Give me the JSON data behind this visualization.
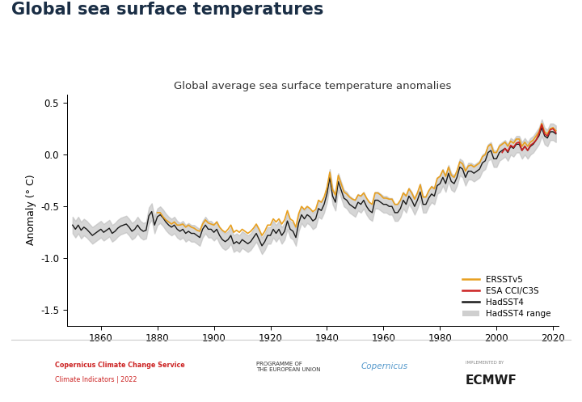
{
  "title_main": "Global sea surface temperatures",
  "title_chart": "Global average sea surface temperature anomalies",
  "ylabel": "Anomaly (° C)",
  "xlim": [
    1848,
    2022
  ],
  "ylim": [
    -1.65,
    0.58
  ],
  "yticks": [
    0.5,
    0.0,
    -0.5,
    -1.0,
    -1.5
  ],
  "xticks": [
    1860,
    1880,
    1900,
    1920,
    1940,
    1960,
    1980,
    2000,
    2020
  ],
  "had_color": "#1a1a1a",
  "ersst_color": "#E8A020",
  "esa_color": "#CC2222",
  "shade_color": "#BBBBBB",
  "title_color": "#1a2e45",
  "legend_labels": [
    "ERSSTv5",
    "ESA CCI/C3S",
    "HadSST4",
    "HadSST4 range"
  ],
  "had_lw": 1.0,
  "ersst_lw": 1.2,
  "esa_lw": 1.2,
  "years": [
    1850,
    1851,
    1852,
    1853,
    1854,
    1855,
    1856,
    1857,
    1858,
    1859,
    1860,
    1861,
    1862,
    1863,
    1864,
    1865,
    1866,
    1867,
    1868,
    1869,
    1870,
    1871,
    1872,
    1873,
    1874,
    1875,
    1876,
    1877,
    1878,
    1879,
    1880,
    1881,
    1882,
    1883,
    1884,
    1885,
    1886,
    1887,
    1888,
    1889,
    1890,
    1891,
    1892,
    1893,
    1894,
    1895,
    1896,
    1897,
    1898,
    1899,
    1900,
    1901,
    1902,
    1903,
    1904,
    1905,
    1906,
    1907,
    1908,
    1909,
    1910,
    1911,
    1912,
    1913,
    1914,
    1915,
    1916,
    1917,
    1918,
    1919,
    1920,
    1921,
    1922,
    1923,
    1924,
    1925,
    1926,
    1927,
    1928,
    1929,
    1930,
    1931,
    1932,
    1933,
    1934,
    1935,
    1936,
    1937,
    1938,
    1939,
    1940,
    1941,
    1942,
    1943,
    1944,
    1945,
    1946,
    1947,
    1948,
    1949,
    1950,
    1951,
    1952,
    1953,
    1954,
    1955,
    1956,
    1957,
    1958,
    1959,
    1960,
    1961,
    1962,
    1963,
    1964,
    1965,
    1966,
    1967,
    1968,
    1969,
    1970,
    1971,
    1972,
    1973,
    1974,
    1975,
    1976,
    1977,
    1978,
    1979,
    1980,
    1981,
    1982,
    1983,
    1984,
    1985,
    1986,
    1987,
    1988,
    1989,
    1990,
    1991,
    1992,
    1993,
    1994,
    1995,
    1996,
    1997,
    1998,
    1999,
    2000,
    2001,
    2002,
    2003,
    2004,
    2005,
    2006,
    2007,
    2008,
    2009,
    2010,
    2011,
    2012,
    2013,
    2014,
    2015,
    2016,
    2017,
    2018,
    2019,
    2020,
    2021
  ],
  "hadsst4": [
    -0.68,
    -0.72,
    -0.68,
    -0.73,
    -0.7,
    -0.72,
    -0.75,
    -0.78,
    -0.76,
    -0.74,
    -0.72,
    -0.75,
    -0.73,
    -0.71,
    -0.76,
    -0.74,
    -0.71,
    -0.69,
    -0.68,
    -0.67,
    -0.7,
    -0.74,
    -0.72,
    -0.68,
    -0.72,
    -0.74,
    -0.73,
    -0.59,
    -0.55,
    -0.68,
    -0.6,
    -0.58,
    -0.61,
    -0.65,
    -0.68,
    -0.7,
    -0.68,
    -0.72,
    -0.74,
    -0.72,
    -0.76,
    -0.74,
    -0.76,
    -0.76,
    -0.78,
    -0.8,
    -0.72,
    -0.68,
    -0.72,
    -0.72,
    -0.75,
    -0.72,
    -0.78,
    -0.82,
    -0.84,
    -0.82,
    -0.78,
    -0.86,
    -0.84,
    -0.86,
    -0.82,
    -0.84,
    -0.86,
    -0.84,
    -0.8,
    -0.76,
    -0.82,
    -0.88,
    -0.84,
    -0.78,
    -0.78,
    -0.72,
    -0.76,
    -0.72,
    -0.78,
    -0.74,
    -0.64,
    -0.72,
    -0.74,
    -0.8,
    -0.66,
    -0.58,
    -0.62,
    -0.58,
    -0.6,
    -0.64,
    -0.62,
    -0.52,
    -0.54,
    -0.48,
    -0.38,
    -0.22,
    -0.4,
    -0.46,
    -0.26,
    -0.34,
    -0.42,
    -0.44,
    -0.48,
    -0.5,
    -0.52,
    -0.46,
    -0.48,
    -0.44,
    -0.5,
    -0.54,
    -0.56,
    -0.44,
    -0.44,
    -0.46,
    -0.48,
    -0.48,
    -0.5,
    -0.5,
    -0.56,
    -0.56,
    -0.52,
    -0.44,
    -0.48,
    -0.4,
    -0.44,
    -0.5,
    -0.44,
    -0.36,
    -0.48,
    -0.48,
    -0.42,
    -0.38,
    -0.4,
    -0.3,
    -0.28,
    -0.22,
    -0.28,
    -0.18,
    -0.26,
    -0.28,
    -0.22,
    -0.12,
    -0.14,
    -0.22,
    -0.16,
    -0.16,
    -0.18,
    -0.16,
    -0.14,
    -0.08,
    -0.06,
    0.02,
    0.04,
    -0.04,
    -0.04,
    0.02,
    0.04,
    0.06,
    0.02,
    0.08,
    0.06,
    0.1,
    0.1,
    0.04,
    0.08,
    0.04,
    0.08,
    0.1,
    0.14,
    0.18,
    0.26,
    0.18,
    0.16,
    0.22,
    0.22,
    0.2
  ],
  "ersst": [
    null,
    null,
    null,
    null,
    null,
    null,
    null,
    null,
    null,
    null,
    null,
    null,
    null,
    null,
    null,
    null,
    null,
    null,
    null,
    null,
    null,
    null,
    null,
    null,
    null,
    null,
    null,
    null,
    null,
    null,
    -0.56,
    -0.56,
    -0.6,
    -0.63,
    -0.65,
    -0.67,
    -0.65,
    -0.68,
    -0.68,
    -0.67,
    -0.7,
    -0.68,
    -0.7,
    -0.71,
    -0.73,
    -0.74,
    -0.67,
    -0.63,
    -0.66,
    -0.67,
    -0.68,
    -0.65,
    -0.7,
    -0.73,
    -0.75,
    -0.72,
    -0.68,
    -0.75,
    -0.73,
    -0.75,
    -0.72,
    -0.74,
    -0.76,
    -0.74,
    -0.71,
    -0.67,
    -0.72,
    -0.78,
    -0.74,
    -0.68,
    -0.68,
    -0.62,
    -0.65,
    -0.62,
    -0.67,
    -0.63,
    -0.54,
    -0.62,
    -0.64,
    -0.7,
    -0.57,
    -0.5,
    -0.53,
    -0.5,
    -0.52,
    -0.55,
    -0.53,
    -0.44,
    -0.46,
    -0.41,
    -0.32,
    -0.17,
    -0.34,
    -0.39,
    -0.2,
    -0.28,
    -0.36,
    -0.38,
    -0.41,
    -0.43,
    -0.44,
    -0.39,
    -0.4,
    -0.37,
    -0.42,
    -0.46,
    -0.48,
    -0.37,
    -0.37,
    -0.39,
    -0.42,
    -0.42,
    -0.43,
    -0.43,
    -0.48,
    -0.48,
    -0.44,
    -0.37,
    -0.4,
    -0.33,
    -0.37,
    -0.43,
    -0.37,
    -0.29,
    -0.41,
    -0.41,
    -0.35,
    -0.31,
    -0.33,
    -0.23,
    -0.21,
    -0.15,
    -0.21,
    -0.12,
    -0.2,
    -0.22,
    -0.16,
    -0.07,
    -0.09,
    -0.16,
    -0.11,
    -0.1,
    -0.12,
    -0.1,
    -0.08,
    -0.02,
    0.0,
    0.08,
    0.1,
    0.02,
    0.02,
    0.08,
    0.1,
    0.12,
    0.08,
    0.13,
    0.11,
    0.15,
    0.15,
    0.08,
    0.12,
    0.08,
    0.12,
    0.14,
    0.18,
    0.22,
    0.3,
    0.22,
    0.2,
    0.25,
    0.26,
    0.23
  ],
  "esa": [
    null,
    null,
    null,
    null,
    null,
    null,
    null,
    null,
    null,
    null,
    null,
    null,
    null,
    null,
    null,
    null,
    null,
    null,
    null,
    null,
    null,
    null,
    null,
    null,
    null,
    null,
    null,
    null,
    null,
    null,
    null,
    null,
    null,
    null,
    null,
    null,
    null,
    null,
    null,
    null,
    null,
    null,
    null,
    null,
    null,
    null,
    null,
    null,
    null,
    null,
    null,
    null,
    null,
    null,
    null,
    null,
    null,
    null,
    null,
    null,
    null,
    null,
    null,
    null,
    null,
    null,
    null,
    null,
    null,
    null,
    null,
    null,
    null,
    null,
    null,
    null,
    null,
    null,
    null,
    null,
    null,
    null,
    null,
    null,
    null,
    null,
    null,
    null,
    null,
    null,
    null,
    null,
    null,
    null,
    null,
    null,
    null,
    null,
    null,
    null,
    null,
    null,
    null,
    null,
    null,
    null,
    null,
    null,
    null,
    null,
    null,
    null,
    null,
    null,
    null,
    null,
    null,
    null,
    null,
    null,
    null,
    null,
    null,
    null,
    null,
    null,
    null,
    null,
    null,
    null,
    null,
    null,
    null,
    null,
    null,
    null,
    null,
    null,
    null,
    null,
    null,
    null,
    null,
    null,
    null,
    null,
    null,
    null,
    null,
    null,
    null,
    null,
    0.02,
    0.06,
    0.03,
    0.09,
    0.07,
    0.11,
    0.12,
    0.04,
    0.08,
    0.04,
    0.09,
    0.11,
    0.14,
    0.2,
    0.29,
    0.2,
    0.18,
    0.24,
    0.25,
    0.21
  ],
  "had_upper": [
    -0.6,
    -0.64,
    -0.6,
    -0.65,
    -0.62,
    -0.64,
    -0.67,
    -0.7,
    -0.68,
    -0.66,
    -0.64,
    -0.67,
    -0.65,
    -0.63,
    -0.68,
    -0.66,
    -0.63,
    -0.61,
    -0.6,
    -0.59,
    -0.62,
    -0.66,
    -0.64,
    -0.6,
    -0.64,
    -0.66,
    -0.65,
    -0.51,
    -0.47,
    -0.6,
    -0.52,
    -0.5,
    -0.53,
    -0.57,
    -0.6,
    -0.62,
    -0.6,
    -0.64,
    -0.66,
    -0.64,
    -0.68,
    -0.66,
    -0.68,
    -0.68,
    -0.7,
    -0.72,
    -0.64,
    -0.6,
    -0.64,
    -0.64,
    -0.67,
    -0.64,
    -0.7,
    -0.74,
    -0.76,
    -0.74,
    -0.7,
    -0.78,
    -0.76,
    -0.78,
    -0.74,
    -0.76,
    -0.78,
    -0.76,
    -0.72,
    -0.68,
    -0.74,
    -0.8,
    -0.76,
    -0.7,
    -0.7,
    -0.64,
    -0.68,
    -0.64,
    -0.7,
    -0.66,
    -0.56,
    -0.64,
    -0.66,
    -0.72,
    -0.58,
    -0.5,
    -0.54,
    -0.5,
    -0.52,
    -0.56,
    -0.54,
    -0.44,
    -0.46,
    -0.4,
    -0.3,
    -0.14,
    -0.32,
    -0.38,
    -0.18,
    -0.26,
    -0.34,
    -0.36,
    -0.4,
    -0.42,
    -0.44,
    -0.38,
    -0.4,
    -0.36,
    -0.42,
    -0.46,
    -0.48,
    -0.36,
    -0.36,
    -0.38,
    -0.4,
    -0.4,
    -0.42,
    -0.42,
    -0.48,
    -0.48,
    -0.44,
    -0.36,
    -0.4,
    -0.32,
    -0.36,
    -0.42,
    -0.36,
    -0.28,
    -0.4,
    -0.4,
    -0.34,
    -0.3,
    -0.32,
    -0.22,
    -0.2,
    -0.14,
    -0.2,
    -0.1,
    -0.18,
    -0.2,
    -0.14,
    -0.04,
    -0.06,
    -0.14,
    -0.08,
    -0.08,
    -0.1,
    -0.08,
    -0.06,
    0.0,
    0.02,
    0.1,
    0.12,
    0.04,
    0.04,
    0.1,
    0.12,
    0.14,
    0.1,
    0.16,
    0.14,
    0.18,
    0.18,
    0.12,
    0.16,
    0.12,
    0.16,
    0.18,
    0.22,
    0.26,
    0.34,
    0.26,
    0.24,
    0.3,
    0.3,
    0.28
  ],
  "had_lower": [
    -0.76,
    -0.8,
    -0.76,
    -0.81,
    -0.78,
    -0.8,
    -0.83,
    -0.86,
    -0.84,
    -0.82,
    -0.8,
    -0.83,
    -0.81,
    -0.79,
    -0.84,
    -0.82,
    -0.79,
    -0.77,
    -0.76,
    -0.75,
    -0.78,
    -0.82,
    -0.8,
    -0.76,
    -0.8,
    -0.82,
    -0.81,
    -0.67,
    -0.63,
    -0.76,
    -0.68,
    -0.66,
    -0.69,
    -0.73,
    -0.76,
    -0.78,
    -0.76,
    -0.8,
    -0.82,
    -0.8,
    -0.84,
    -0.82,
    -0.84,
    -0.84,
    -0.86,
    -0.88,
    -0.8,
    -0.76,
    -0.8,
    -0.8,
    -0.83,
    -0.8,
    -0.86,
    -0.9,
    -0.92,
    -0.9,
    -0.86,
    -0.94,
    -0.92,
    -0.94,
    -0.9,
    -0.92,
    -0.94,
    -0.92,
    -0.88,
    -0.84,
    -0.9,
    -0.96,
    -0.92,
    -0.86,
    -0.86,
    -0.8,
    -0.84,
    -0.8,
    -0.86,
    -0.82,
    -0.72,
    -0.8,
    -0.82,
    -0.88,
    -0.74,
    -0.66,
    -0.7,
    -0.66,
    -0.68,
    -0.72,
    -0.7,
    -0.6,
    -0.62,
    -0.56,
    -0.46,
    -0.3,
    -0.48,
    -0.54,
    -0.34,
    -0.42,
    -0.5,
    -0.52,
    -0.56,
    -0.58,
    -0.6,
    -0.54,
    -0.56,
    -0.52,
    -0.58,
    -0.62,
    -0.64,
    -0.52,
    -0.52,
    -0.54,
    -0.56,
    -0.56,
    -0.58,
    -0.58,
    -0.64,
    -0.64,
    -0.6,
    -0.52,
    -0.56,
    -0.48,
    -0.52,
    -0.58,
    -0.52,
    -0.44,
    -0.56,
    -0.56,
    -0.5,
    -0.46,
    -0.48,
    -0.38,
    -0.36,
    -0.3,
    -0.36,
    -0.26,
    -0.34,
    -0.36,
    -0.3,
    -0.2,
    -0.22,
    -0.3,
    -0.24,
    -0.24,
    -0.26,
    -0.24,
    -0.22,
    -0.16,
    -0.14,
    -0.06,
    -0.04,
    -0.12,
    -0.12,
    -0.06,
    -0.04,
    -0.02,
    -0.06,
    0.0,
    -0.02,
    0.02,
    0.02,
    -0.04,
    0.0,
    -0.04,
    0.0,
    0.02,
    0.06,
    0.1,
    0.18,
    0.1,
    0.08,
    0.14,
    0.14,
    0.12
  ]
}
